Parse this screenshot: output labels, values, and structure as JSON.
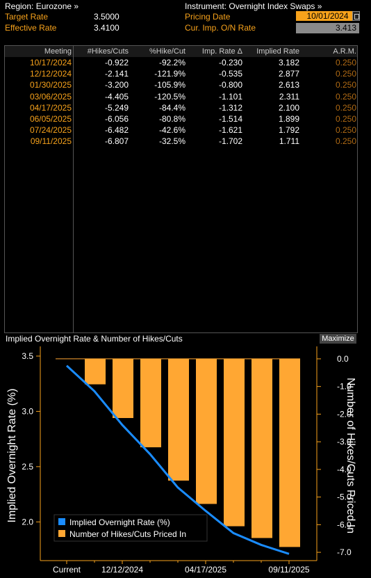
{
  "header": {
    "region_label": "Region: Eurozone »",
    "instrument_label": "Instrument: Overnight Index Swaps »",
    "target_rate_label": "Target Rate",
    "target_rate_value": "3.5000",
    "effective_rate_label": "Effective Rate",
    "effective_rate_value": "3.4100",
    "pricing_date_label": "Pricing Date",
    "pricing_date_value": "10/01/2024",
    "cur_imp_label": "Cur. Imp. O/N Rate",
    "cur_imp_value": "3.413"
  },
  "table": {
    "columns": [
      "Meeting",
      "#Hikes/Cuts",
      "%Hike/Cut",
      "Imp. Rate Δ",
      "Implied Rate",
      "A.R.M."
    ],
    "rows": [
      {
        "meeting": "10/17/2024",
        "hikes": "-0.922",
        "pct": "-92.2%",
        "delta": "-0.230",
        "implied": "3.182",
        "arm": "0.250"
      },
      {
        "meeting": "12/12/2024",
        "hikes": "-2.141",
        "pct": "-121.9%",
        "delta": "-0.535",
        "implied": "2.877",
        "arm": "0.250"
      },
      {
        "meeting": "01/30/2025",
        "hikes": "-3.200",
        "pct": "-105.9%",
        "delta": "-0.800",
        "implied": "2.613",
        "arm": "0.250"
      },
      {
        "meeting": "03/06/2025",
        "hikes": "-4.405",
        "pct": "-120.5%",
        "delta": "-1.101",
        "implied": "2.311",
        "arm": "0.250"
      },
      {
        "meeting": "04/17/2025",
        "hikes": "-5.249",
        "pct": "-84.4%",
        "delta": "-1.312",
        "implied": "2.100",
        "arm": "0.250"
      },
      {
        "meeting": "06/05/2025",
        "hikes": "-6.056",
        "pct": "-80.8%",
        "delta": "-1.514",
        "implied": "1.899",
        "arm": "0.250"
      },
      {
        "meeting": "07/24/2025",
        "hikes": "-6.482",
        "pct": "-42.6%",
        "delta": "-1.621",
        "implied": "1.792",
        "arm": "0.250"
      },
      {
        "meeting": "09/11/2025",
        "hikes": "-6.807",
        "pct": "-32.5%",
        "delta": "-1.702",
        "implied": "1.711",
        "arm": "0.250"
      }
    ]
  },
  "chart_panel": {
    "title": "Implied Overnight Rate & Number of Hikes/Cuts",
    "maximize_label": "Maximize"
  },
  "chart_data": {
    "type": "bar",
    "title": "Implied Overnight Rate & Number of Hikes/Cuts",
    "categories": [
      "Current",
      "10/17/2024",
      "12/12/2024",
      "01/30/2025",
      "03/06/2025",
      "04/17/2025",
      "06/05/2025",
      "07/24/2025",
      "09/11/2025"
    ],
    "x_tick_labels": [
      "Current",
      "12/12/2024",
      "04/17/2025",
      "09/11/2025"
    ],
    "ylabel_left": "Implied Overnight Rate (%)",
    "ylabel_right": "Number of Hikes/Cuts Priced In",
    "ylim_left": [
      1.65,
      3.55
    ],
    "ylim_right": [
      -7.3,
      0.3
    ],
    "left_ticks": [
      "3.5",
      "3.0",
      "2.5",
      "2.0"
    ],
    "right_ticks": [
      "0.0",
      "-1.0",
      "-2.0",
      "-3.0",
      "-4.0",
      "-5.0",
      "-6.0",
      "-7.0"
    ],
    "series": [
      {
        "name": "Implied Overnight Rate (%)",
        "type": "line",
        "color": "#1a8cff",
        "values": [
          3.413,
          3.182,
          2.877,
          2.613,
          2.311,
          2.1,
          1.899,
          1.792,
          1.711
        ]
      },
      {
        "name": "Number of Hikes/Cuts Priced In",
        "type": "bar",
        "color": "#ffa733",
        "values": [
          null,
          -0.922,
          -2.141,
          -3.2,
          -4.405,
          -5.249,
          -6.056,
          -6.482,
          -6.807
        ]
      }
    ],
    "legend_position": "bottom-left",
    "axis_color": "#f7a21b"
  }
}
